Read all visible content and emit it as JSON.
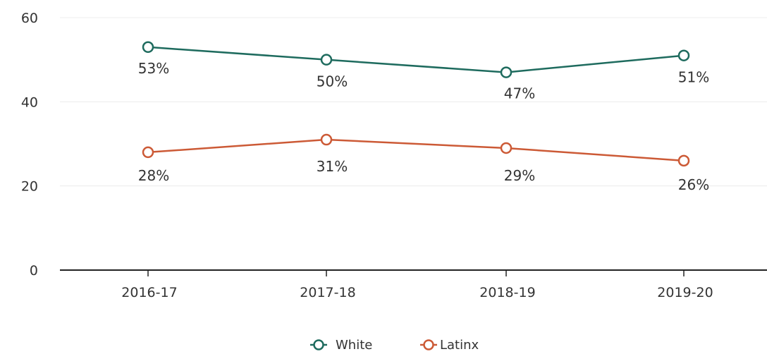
{
  "chart_data": {
    "type": "line",
    "categories": [
      "2016-17",
      "2017-18",
      "2018-19",
      "2019-20"
    ],
    "series": [
      {
        "name": "White",
        "values": [
          53,
          50,
          47,
          51
        ],
        "labels": [
          "53%",
          "50%",
          "47%",
          "51%"
        ],
        "color": "#1e6b5e"
      },
      {
        "name": "Latinx",
        "values": [
          28,
          31,
          29,
          26
        ],
        "labels": [
          "28%",
          "31%",
          "29%",
          "26%"
        ],
        "color": "#cc5a36"
      }
    ],
    "y_ticks": [
      "0",
      "20",
      "40",
      "60"
    ],
    "ylim": [
      0,
      60
    ],
    "grid": true,
    "legend": "bottom-center",
    "title": "",
    "xlabel": "",
    "ylabel": ""
  }
}
